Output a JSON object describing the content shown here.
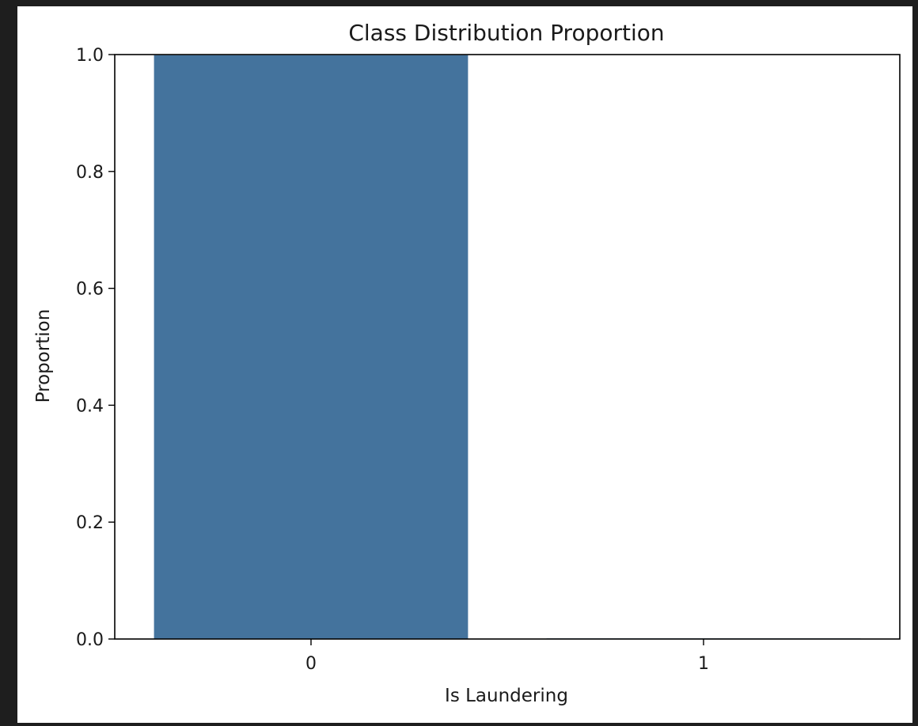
{
  "chart_data": {
    "type": "bar",
    "title": "Class Distribution Proportion",
    "xlabel": "Is Laundering",
    "ylabel": "Proportion",
    "categories": [
      "0",
      "1"
    ],
    "values": [
      0.999,
      0.001
    ],
    "ylim": [
      0,
      1.0
    ],
    "yticks": [
      "0.0",
      "0.2",
      "0.4",
      "0.6",
      "0.8",
      "1.0"
    ],
    "grid": false,
    "bar_color": "#44739d"
  }
}
